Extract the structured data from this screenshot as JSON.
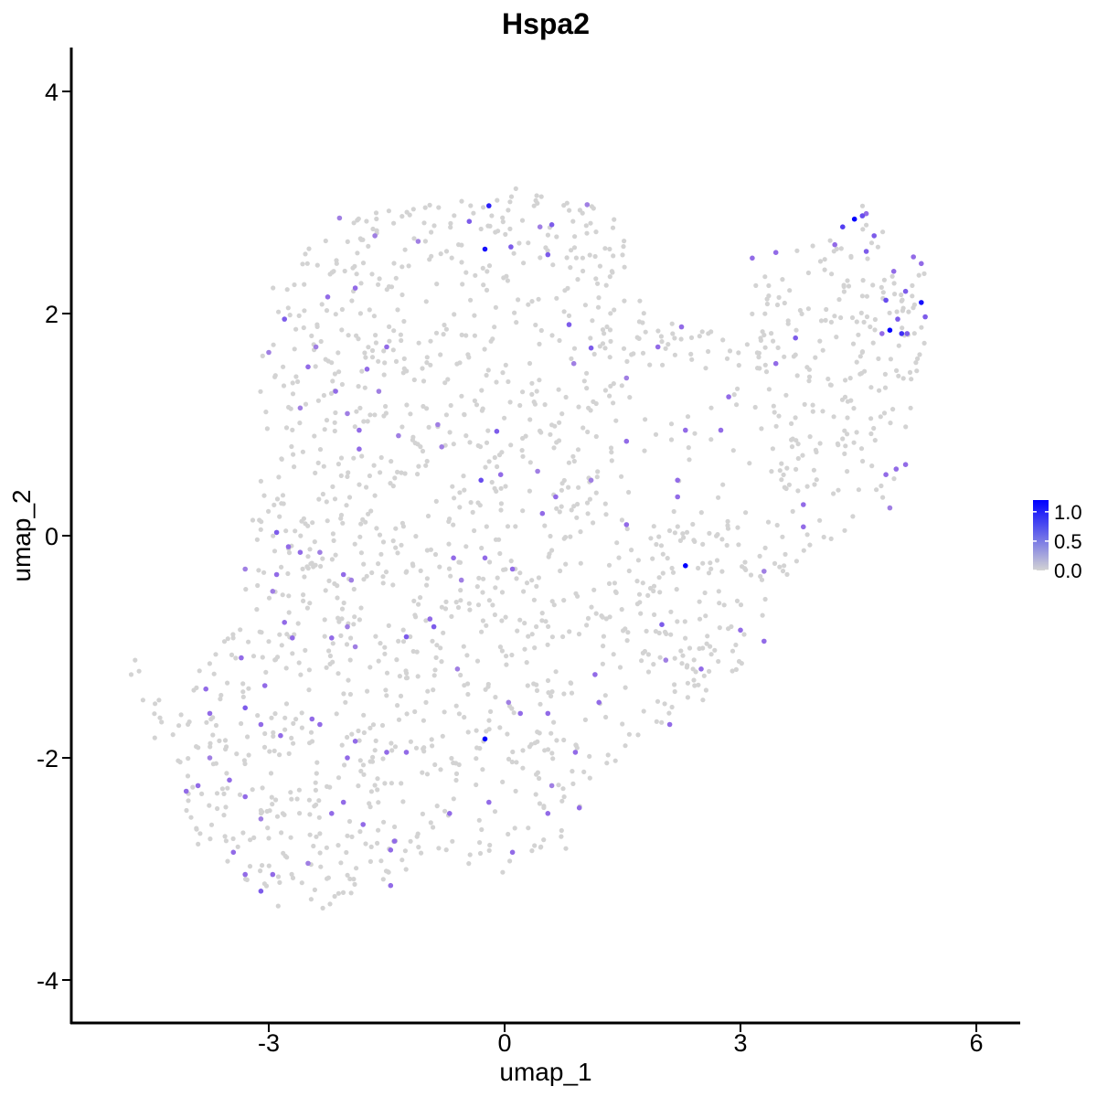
{
  "chart_data": {
    "type": "scatter",
    "title": "Hspa2",
    "xlabel": "umap_1",
    "ylabel": "umap_2",
    "xlim": [
      -5.4,
      6.6
    ],
    "ylim": [
      -4.3,
      4.4
    ],
    "x_ticks": [
      -3,
      0,
      3,
      6
    ],
    "x_tick_labels": [
      "-3",
      "0",
      "3",
      "6"
    ],
    "y_ticks": [
      -4,
      -2,
      0,
      2,
      4
    ],
    "y_tick_labels": [
      "-4",
      "-2",
      "0",
      "2",
      "4"
    ],
    "grid": false,
    "legend_position": "right",
    "color_scale": {
      "low_color": "#d3d3d3",
      "high_color": "#0000ff",
      "min": 0,
      "max": 1.2,
      "ticks": [
        0.0,
        0.5,
        1.0
      ],
      "tick_labels": [
        "0.0",
        "0.5",
        "1.0"
      ]
    },
    "point_color_background": "#d3d3d3",
    "expressing_points": [
      {
        "x": 4.45,
        "y": 2.85,
        "v": 1.2
      },
      {
        "x": 4.9,
        "y": 1.85,
        "v": 1.2
      },
      {
        "x": 5.3,
        "y": 2.1,
        "v": 1.1
      },
      {
        "x": -0.25,
        "y": 2.58,
        "v": 1.1
      },
      {
        "x": 2.3,
        "y": -0.27,
        "v": 1.2
      },
      {
        "x": -0.25,
        "y": -1.83,
        "v": 1.2
      },
      {
        "x": -0.2,
        "y": 2.97,
        "v": 1.0
      },
      {
        "x": 5.05,
        "y": 1.82,
        "v": 0.9
      },
      {
        "x": 4.3,
        "y": 2.78,
        "v": 0.8
      },
      {
        "x": 4.55,
        "y": 2.88,
        "v": 0.7
      },
      {
        "x": 4.7,
        "y": 2.7,
        "v": 0.6
      },
      {
        "x": 4.85,
        "y": 2.12,
        "v": 0.7
      },
      {
        "x": 5.1,
        "y": 2.2,
        "v": 0.6
      },
      {
        "x": 5.35,
        "y": 1.97,
        "v": 0.6
      },
      {
        "x": 5.3,
        "y": 2.45,
        "v": 0.5
      },
      {
        "x": 4.95,
        "y": 2.38,
        "v": 0.5
      },
      {
        "x": 4.6,
        "y": 2.56,
        "v": 0.6
      },
      {
        "x": 4.8,
        "y": 1.82,
        "v": 0.5
      },
      {
        "x": 5.0,
        "y": 1.95,
        "v": 0.6
      },
      {
        "x": 5.12,
        "y": 1.82,
        "v": 0.6
      },
      {
        "x": 4.2,
        "y": 2.62,
        "v": 0.5
      },
      {
        "x": 4.6,
        "y": 2.9,
        "v": 0.5
      },
      {
        "x": 5.2,
        "y": 2.51,
        "v": 0.5
      },
      {
        "x": 4.98,
        "y": 0.6,
        "v": 0.5
      },
      {
        "x": 5.1,
        "y": 0.64,
        "v": 0.5
      },
      {
        "x": 4.85,
        "y": 0.55,
        "v": 0.5
      },
      {
        "x": 4.9,
        "y": 0.25,
        "v": 0.4
      },
      {
        "x": 0.08,
        "y": 2.6,
        "v": 0.6
      },
      {
        "x": 0.55,
        "y": 2.53,
        "v": 0.6
      },
      {
        "x": -0.45,
        "y": 2.83,
        "v": 0.6
      },
      {
        "x": 0.6,
        "y": 2.8,
        "v": 0.6
      },
      {
        "x": 1.1,
        "y": 1.69,
        "v": 0.6
      },
      {
        "x": 0.82,
        "y": 1.9,
        "v": 0.6
      },
      {
        "x": -2.8,
        "y": 1.95,
        "v": 0.6
      },
      {
        "x": -2.5,
        "y": 1.52,
        "v": 0.5
      },
      {
        "x": -2.25,
        "y": 2.15,
        "v": 0.5
      },
      {
        "x": -1.9,
        "y": 2.23,
        "v": 0.5
      },
      {
        "x": -1.75,
        "y": 1.5,
        "v": 0.5
      },
      {
        "x": -1.5,
        "y": 1.7,
        "v": 0.5
      },
      {
        "x": -1.85,
        "y": 0.95,
        "v": 0.5
      },
      {
        "x": -2.15,
        "y": 1.3,
        "v": 0.5
      },
      {
        "x": -1.85,
        "y": 0.78,
        "v": 0.5
      },
      {
        "x": -2.0,
        "y": 1.1,
        "v": 0.4
      },
      {
        "x": -2.9,
        "y": 0.03,
        "v": 0.6
      },
      {
        "x": -2.75,
        "y": -0.1,
        "v": 0.5
      },
      {
        "x": -2.9,
        "y": -0.35,
        "v": 0.5
      },
      {
        "x": -2.6,
        "y": -0.15,
        "v": 0.5
      },
      {
        "x": -2.35,
        "y": -0.15,
        "v": 0.4
      },
      {
        "x": -2.05,
        "y": -0.35,
        "v": 0.5
      },
      {
        "x": -1.95,
        "y": -0.4,
        "v": 0.4
      },
      {
        "x": -2.8,
        "y": -0.78,
        "v": 0.5
      },
      {
        "x": -2.7,
        "y": -0.92,
        "v": 0.5
      },
      {
        "x": -2.2,
        "y": -0.92,
        "v": 0.5
      },
      {
        "x": -2.0,
        "y": -0.82,
        "v": 0.4
      },
      {
        "x": -1.25,
        "y": -0.91,
        "v": 0.6
      },
      {
        "x": -0.9,
        "y": -0.82,
        "v": 0.6
      },
      {
        "x": -0.95,
        "y": -0.75,
        "v": 0.5
      },
      {
        "x": -0.65,
        "y": -0.2,
        "v": 0.5
      },
      {
        "x": -0.55,
        "y": -0.4,
        "v": 0.4
      },
      {
        "x": -0.25,
        "y": -0.2,
        "v": 0.5
      },
      {
        "x": 0.1,
        "y": -0.3,
        "v": 0.5
      },
      {
        "x": -0.3,
        "y": 0.5,
        "v": 0.7
      },
      {
        "x": -0.05,
        "y": 0.55,
        "v": 0.5
      },
      {
        "x": -0.1,
        "y": 0.94,
        "v": 0.6
      },
      {
        "x": 0.48,
        "y": 0.2,
        "v": 0.5
      },
      {
        "x": 0.65,
        "y": 0.35,
        "v": 0.5
      },
      {
        "x": 1.55,
        "y": 0.1,
        "v": 0.5
      },
      {
        "x": 1.55,
        "y": 0.85,
        "v": 0.5
      },
      {
        "x": 1.1,
        "y": 0.5,
        "v": 0.4
      },
      {
        "x": 2.3,
        "y": 0.95,
        "v": 0.5
      },
      {
        "x": 2.75,
        "y": 0.95,
        "v": 0.5
      },
      {
        "x": 2.85,
        "y": 1.25,
        "v": 0.5
      },
      {
        "x": 1.95,
        "y": 1.7,
        "v": 0.5
      },
      {
        "x": 2.25,
        "y": 1.88,
        "v": 0.5
      },
      {
        "x": 3.45,
        "y": 1.55,
        "v": 0.5
      },
      {
        "x": 3.7,
        "y": 1.78,
        "v": 0.6
      },
      {
        "x": 3.15,
        "y": 2.5,
        "v": 0.5
      },
      {
        "x": 3.45,
        "y": 2.55,
        "v": 0.5
      },
      {
        "x": 2.2,
        "y": 0.5,
        "v": 0.5
      },
      {
        "x": 2.2,
        "y": 0.35,
        "v": 0.5
      },
      {
        "x": 3.8,
        "y": 0.28,
        "v": 0.5
      },
      {
        "x": 3.8,
        "y": 0.08,
        "v": 0.5
      },
      {
        "x": 3.3,
        "y": -0.32,
        "v": 0.4
      },
      {
        "x": 2.0,
        "y": -0.8,
        "v": 0.6
      },
      {
        "x": 3.0,
        "y": -0.85,
        "v": 0.5
      },
      {
        "x": 3.3,
        "y": -0.95,
        "v": 0.5
      },
      {
        "x": 2.5,
        "y": -1.2,
        "v": 0.5
      },
      {
        "x": 1.15,
        "y": -1.25,
        "v": 0.5
      },
      {
        "x": 1.2,
        "y": -1.5,
        "v": 0.5
      },
      {
        "x": 2.1,
        "y": -1.7,
        "v": 0.5
      },
      {
        "x": -0.6,
        "y": -1.2,
        "v": 0.4
      },
      {
        "x": -1.25,
        "y": -1.95,
        "v": 0.5
      },
      {
        "x": -1.5,
        "y": -1.95,
        "v": 0.5
      },
      {
        "x": -1.9,
        "y": -1.85,
        "v": 0.5
      },
      {
        "x": -2.0,
        "y": -2.0,
        "v": 0.5
      },
      {
        "x": -2.35,
        "y": -1.7,
        "v": 0.5
      },
      {
        "x": -2.45,
        "y": -1.65,
        "v": 0.5
      },
      {
        "x": -2.85,
        "y": -1.8,
        "v": 0.5
      },
      {
        "x": -3.3,
        "y": -1.55,
        "v": 0.6
      },
      {
        "x": -3.1,
        "y": -1.7,
        "v": 0.5
      },
      {
        "x": -3.35,
        "y": -1.1,
        "v": 0.5
      },
      {
        "x": -3.05,
        "y": -1.35,
        "v": 0.5
      },
      {
        "x": -3.8,
        "y": -1.38,
        "v": 0.5
      },
      {
        "x": -3.75,
        "y": -1.6,
        "v": 0.5
      },
      {
        "x": -3.9,
        "y": -2.25,
        "v": 0.5
      },
      {
        "x": -3.5,
        "y": -2.2,
        "v": 0.5
      },
      {
        "x": -3.3,
        "y": -2.35,
        "v": 0.5
      },
      {
        "x": -3.45,
        "y": -2.85,
        "v": 0.5
      },
      {
        "x": -3.3,
        "y": -3.05,
        "v": 0.5
      },
      {
        "x": -3.1,
        "y": -3.2,
        "v": 0.6
      },
      {
        "x": -2.95,
        "y": -3.05,
        "v": 0.5
      },
      {
        "x": -2.5,
        "y": -2.95,
        "v": 0.4
      },
      {
        "x": -2.2,
        "y": -2.5,
        "v": 0.5
      },
      {
        "x": -2.05,
        "y": -2.4,
        "v": 0.5
      },
      {
        "x": -1.8,
        "y": -2.6,
        "v": 0.5
      },
      {
        "x": -1.45,
        "y": -2.83,
        "v": 0.5
      },
      {
        "x": -1.4,
        "y": -2.75,
        "v": 0.5
      },
      {
        "x": -1.45,
        "y": -3.15,
        "v": 0.5
      },
      {
        "x": -0.7,
        "y": -2.5,
        "v": 0.5
      },
      {
        "x": -0.2,
        "y": -2.4,
        "v": 0.5
      },
      {
        "x": 0.1,
        "y": -2.85,
        "v": 0.5
      },
      {
        "x": 0.55,
        "y": -2.5,
        "v": 0.5
      },
      {
        "x": 0.6,
        "y": -2.25,
        "v": 0.4
      },
      {
        "x": 0.55,
        "y": -1.6,
        "v": 0.5
      },
      {
        "x": 0.2,
        "y": -1.6,
        "v": 0.5
      },
      {
        "x": 0.05,
        "y": -1.5,
        "v": 0.4
      },
      {
        "x": 0.9,
        "y": -1.95,
        "v": 0.5
      },
      {
        "x": 0.95,
        "y": -2.45,
        "v": 0.5
      },
      {
        "x": 2.05,
        "y": -1.12,
        "v": 0.4
      },
      {
        "x": -4.05,
        "y": -2.3,
        "v": 0.5
      },
      {
        "x": -3.1,
        "y": -2.55,
        "v": 0.4
      },
      {
        "x": -3.75,
        "y": -2.0,
        "v": 0.4
      },
      {
        "x": -1.9,
        "y": -1.0,
        "v": 0.4
      },
      {
        "x": -2.95,
        "y": -0.5,
        "v": 0.4
      },
      {
        "x": -3.3,
        "y": -0.3,
        "v": 0.4
      },
      {
        "x": -2.4,
        "y": 1.7,
        "v": 0.4
      },
      {
        "x": -2.6,
        "y": 1.15,
        "v": 0.4
      },
      {
        "x": -1.6,
        "y": 1.3,
        "v": 0.4
      },
      {
        "x": -1.35,
        "y": 0.9,
        "v": 0.4
      },
      {
        "x": -0.85,
        "y": 1.0,
        "v": 0.4
      },
      {
        "x": -0.8,
        "y": 0.8,
        "v": 0.4
      },
      {
        "x": 0.42,
        "y": 0.58,
        "v": 0.4
      },
      {
        "x": 1.55,
        "y": 1.42,
        "v": 0.4
      },
      {
        "x": 0.88,
        "y": 1.55,
        "v": 0.4
      },
      {
        "x": 1.05,
        "y": 2.98,
        "v": 0.4
      },
      {
        "x": 0.45,
        "y": 2.78,
        "v": 0.4
      },
      {
        "x": -1.1,
        "y": 2.65,
        "v": 0.4
      },
      {
        "x": -1.65,
        "y": 2.7,
        "v": 0.4
      },
      {
        "x": -2.1,
        "y": 2.86,
        "v": 0.4
      },
      {
        "x": -3.0,
        "y": 1.65,
        "v": 0.4
      }
    ],
    "background_point_count": 1700
  }
}
